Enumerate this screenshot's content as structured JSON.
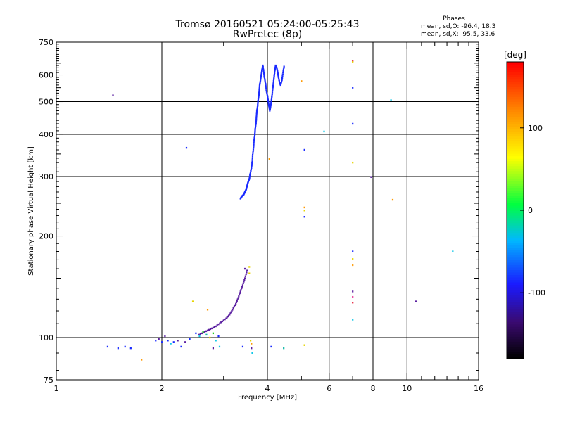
{
  "header": {
    "title": "Tromsø 20160521 05:24:00-05:25:43",
    "subtitle": "RwPretec (8p)"
  },
  "stats": {
    "title": "Phases",
    "line_o": "mean, sd,O: -96.4, 18.3",
    "line_x": "mean, sd,X:  95.5, 33.6"
  },
  "colorbar": {
    "label": "[deg]",
    "ticks": [
      100,
      0,
      -100
    ],
    "tick_labels": [
      "100",
      "0",
      "-100"
    ],
    "range": [
      -180,
      180
    ]
  },
  "colors": {
    "blue": "#1a2bff",
    "purple": "#5a1fa0",
    "cyan": "#11c8e8",
    "teal": "#12b8a8",
    "green": "#22cc22",
    "yellow": "#e6d400",
    "orange": "#ff9900",
    "red": "#e8203a",
    "pink": "#e83c9a"
  },
  "chart_data": {
    "type": "scatter",
    "xlabel": "Frequency [MHz]",
    "ylabel": "Stationary phase Virtual Height [km]",
    "xscale": "log",
    "yscale": "log",
    "xlim": [
      1,
      16
    ],
    "ylim": [
      75,
      750
    ],
    "x_ticks": [
      1,
      2,
      4,
      6,
      8,
      10,
      16
    ],
    "x_tick_labels": [
      "1",
      "2",
      "4",
      "6",
      "8",
      "10",
      "16"
    ],
    "y_ticks": [
      75,
      100,
      200,
      300,
      400,
      500,
      600,
      750
    ],
    "y_tick_labels": [
      "75",
      "100",
      "200",
      "300",
      "400",
      "500",
      "600",
      "750"
    ],
    "x_gridlines": [
      2,
      4,
      6,
      8,
      10
    ],
    "y_gridlines": [
      100,
      200,
      300,
      400,
      500,
      600
    ],
    "traces": [
      {
        "color": "blue",
        "points": [
          [
            3.35,
            258
          ],
          [
            3.38,
            262
          ],
          [
            3.42,
            265
          ],
          [
            3.45,
            270
          ],
          [
            3.48,
            275
          ],
          [
            3.5,
            282
          ],
          [
            3.52,
            288
          ],
          [
            3.55,
            295
          ],
          [
            3.57,
            305
          ],
          [
            3.6,
            318
          ],
          [
            3.62,
            332
          ],
          [
            3.63,
            348
          ],
          [
            3.65,
            365
          ],
          [
            3.66,
            382
          ],
          [
            3.68,
            398
          ],
          [
            3.69,
            415
          ],
          [
            3.71,
            432
          ],
          [
            3.72,
            450
          ],
          [
            3.73,
            468
          ],
          [
            3.75,
            485
          ],
          [
            3.76,
            503
          ],
          [
            3.78,
            522
          ],
          [
            3.79,
            540
          ],
          [
            3.8,
            560
          ],
          [
            3.82,
            578
          ],
          [
            3.84,
            600
          ],
          [
            3.86,
            622
          ],
          [
            3.88,
            640
          ],
          [
            3.9,
            615
          ],
          [
            3.92,
            590
          ],
          [
            3.95,
            565
          ],
          [
            3.97,
            540
          ],
          [
            4.0,
            520
          ],
          [
            4.02,
            502
          ],
          [
            4.04,
            485
          ],
          [
            4.06,
            470
          ],
          [
            4.08,
            482
          ],
          [
            4.1,
            500
          ],
          [
            4.12,
            520
          ],
          [
            4.14,
            545
          ],
          [
            4.16,
            570
          ],
          [
            4.18,
            595
          ],
          [
            4.2,
            620
          ],
          [
            4.22,
            640
          ],
          [
            4.25,
            630
          ],
          [
            4.28,
            610
          ],
          [
            4.3,
            590
          ],
          [
            4.33,
            570
          ],
          [
            4.36,
            560
          ],
          [
            4.4,
            580
          ],
          [
            4.43,
            610
          ],
          [
            4.46,
            635
          ]
        ]
      },
      {
        "color": "purple",
        "points": [
          [
            2.55,
            102
          ],
          [
            2.65,
            104
          ],
          [
            2.75,
            106
          ],
          [
            2.85,
            108
          ],
          [
            2.95,
            111
          ],
          [
            3.05,
            114
          ],
          [
            3.12,
            117
          ],
          [
            3.18,
            121
          ],
          [
            3.25,
            126
          ],
          [
            3.3,
            131
          ],
          [
            3.35,
            137
          ],
          [
            3.4,
            143
          ],
          [
            3.45,
            150
          ],
          [
            3.5,
            158
          ]
        ]
      }
    ],
    "points": [
      {
        "x": 1.45,
        "y": 522,
        "c": "purple"
      },
      {
        "x": 2.35,
        "y": 365,
        "c": "blue"
      },
      {
        "x": 4.05,
        "y": 338,
        "c": "orange"
      },
      {
        "x": 5.0,
        "y": 575,
        "c": "orange"
      },
      {
        "x": 5.1,
        "y": 360,
        "c": "blue"
      },
      {
        "x": 5.8,
        "y": 408,
        "c": "cyan"
      },
      {
        "x": 5.1,
        "y": 243,
        "c": "orange"
      },
      {
        "x": 5.1,
        "y": 238,
        "c": "yellow"
      },
      {
        "x": 5.1,
        "y": 228,
        "c": "blue"
      },
      {
        "x": 7.0,
        "y": 660,
        "c": "red"
      },
      {
        "x": 7.0,
        "y": 655,
        "c": "yellow"
      },
      {
        "x": 7.0,
        "y": 550,
        "c": "blue"
      },
      {
        "x": 7.0,
        "y": 430,
        "c": "blue"
      },
      {
        "x": 7.0,
        "y": 330,
        "c": "yellow"
      },
      {
        "x": 7.9,
        "y": 299,
        "c": "purple"
      },
      {
        "x": 9.0,
        "y": 505,
        "c": "cyan"
      },
      {
        "x": 9.1,
        "y": 256,
        "c": "orange"
      },
      {
        "x": 7.0,
        "y": 180,
        "c": "blue"
      },
      {
        "x": 7.0,
        "y": 171,
        "c": "yellow"
      },
      {
        "x": 7.0,
        "y": 164,
        "c": "orange"
      },
      {
        "x": 7.0,
        "y": 137,
        "c": "purple"
      },
      {
        "x": 7.0,
        "y": 132,
        "c": "pink"
      },
      {
        "x": 7.0,
        "y": 127,
        "c": "red"
      },
      {
        "x": 7.0,
        "y": 113,
        "c": "cyan"
      },
      {
        "x": 10.6,
        "y": 128,
        "c": "purple"
      },
      {
        "x": 13.5,
        "y": 180,
        "c": "cyan"
      },
      {
        "x": 3.55,
        "y": 162,
        "c": "yellow"
      },
      {
        "x": 3.45,
        "y": 160,
        "c": "purple"
      },
      {
        "x": 3.55,
        "y": 155,
        "c": "yellow"
      },
      {
        "x": 2.45,
        "y": 128,
        "c": "yellow"
      },
      {
        "x": 2.7,
        "y": 121,
        "c": "orange"
      },
      {
        "x": 1.4,
        "y": 94,
        "c": "blue"
      },
      {
        "x": 1.5,
        "y": 93,
        "c": "blue"
      },
      {
        "x": 1.57,
        "y": 94,
        "c": "blue"
      },
      {
        "x": 1.63,
        "y": 93,
        "c": "blue"
      },
      {
        "x": 1.75,
        "y": 86,
        "c": "orange"
      },
      {
        "x": 1.92,
        "y": 98,
        "c": "blue"
      },
      {
        "x": 1.96,
        "y": 99,
        "c": "purple"
      },
      {
        "x": 2.0,
        "y": 97,
        "c": "blue"
      },
      {
        "x": 2.04,
        "y": 101,
        "c": "purple"
      },
      {
        "x": 2.08,
        "y": 98,
        "c": "blue"
      },
      {
        "x": 2.12,
        "y": 96,
        "c": "cyan"
      },
      {
        "x": 2.16,
        "y": 97,
        "c": "blue"
      },
      {
        "x": 2.22,
        "y": 98,
        "c": "purple"
      },
      {
        "x": 2.27,
        "y": 94,
        "c": "blue"
      },
      {
        "x": 2.33,
        "y": 97,
        "c": "purple"
      },
      {
        "x": 2.4,
        "y": 99,
        "c": "blue"
      },
      {
        "x": 2.5,
        "y": 103,
        "c": "blue"
      },
      {
        "x": 2.56,
        "y": 101,
        "c": "cyan"
      },
      {
        "x": 2.62,
        "y": 104,
        "c": "green"
      },
      {
        "x": 2.68,
        "y": 102,
        "c": "teal"
      },
      {
        "x": 2.74,
        "y": 100,
        "c": "yellow"
      },
      {
        "x": 2.8,
        "y": 103,
        "c": "green"
      },
      {
        "x": 2.85,
        "y": 98,
        "c": "cyan"
      },
      {
        "x": 2.9,
        "y": 101,
        "c": "blue"
      },
      {
        "x": 2.8,
        "y": 93,
        "c": "purple"
      },
      {
        "x": 2.92,
        "y": 94,
        "c": "cyan"
      },
      {
        "x": 3.4,
        "y": 94,
        "c": "blue"
      },
      {
        "x": 3.58,
        "y": 98,
        "c": "yellow"
      },
      {
        "x": 3.6,
        "y": 96,
        "c": "orange"
      },
      {
        "x": 3.6,
        "y": 93,
        "c": "purple"
      },
      {
        "x": 3.62,
        "y": 90,
        "c": "cyan"
      },
      {
        "x": 4.1,
        "y": 94,
        "c": "blue"
      },
      {
        "x": 4.45,
        "y": 93,
        "c": "teal"
      },
      {
        "x": 5.1,
        "y": 95,
        "c": "yellow"
      }
    ]
  }
}
